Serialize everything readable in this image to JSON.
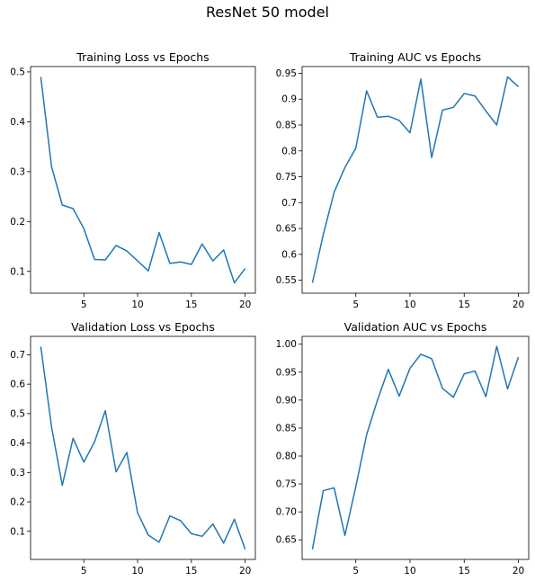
{
  "suptitle": "ResNet 50 model",
  "colors": {
    "line": "#1f77b4",
    "axes": "#000000",
    "background": "#ffffff"
  },
  "chart_data": [
    {
      "type": "line",
      "title": "Training Loss vs Epochs",
      "xlabel": "",
      "ylabel": "",
      "x": [
        1,
        2,
        3,
        4,
        5,
        6,
        7,
        8,
        9,
        10,
        11,
        12,
        13,
        14,
        15,
        16,
        17,
        18,
        19,
        20
      ],
      "values": [
        0.49,
        0.31,
        0.233,
        0.226,
        0.186,
        0.124,
        0.123,
        0.152,
        0.141,
        0.121,
        0.101,
        0.178,
        0.116,
        0.119,
        0.114,
        0.155,
        0.121,
        0.143,
        0.077,
        0.106
      ],
      "xticks": [
        5,
        10,
        15,
        20
      ],
      "yticks": [
        0.1,
        0.2,
        0.3,
        0.4,
        0.5
      ],
      "xlim": [
        0.05,
        20.95
      ],
      "ylim": [
        0.0563,
        0.5107
      ],
      "grid": false
    },
    {
      "type": "line",
      "title": "Training AUC vs Epochs",
      "xlabel": "",
      "ylabel": "",
      "x": [
        1,
        2,
        3,
        4,
        5,
        6,
        7,
        8,
        9,
        10,
        11,
        12,
        13,
        14,
        15,
        16,
        17,
        18,
        19,
        20
      ],
      "values": [
        0.545,
        0.638,
        0.72,
        0.768,
        0.805,
        0.916,
        0.865,
        0.867,
        0.859,
        0.835,
        0.939,
        0.787,
        0.879,
        0.884,
        0.911,
        0.906,
        0.877,
        0.85,
        0.943,
        0.924
      ],
      "xticks": [
        5,
        10,
        15,
        20
      ],
      "yticks": [
        0.55,
        0.6,
        0.65,
        0.7,
        0.75,
        0.8,
        0.85,
        0.9,
        0.95
      ],
      "xlim": [
        0.05,
        20.95
      ],
      "ylim": [
        0.525,
        0.963
      ],
      "grid": false
    },
    {
      "type": "line",
      "title": "Validation Loss vs Epochs",
      "xlabel": "",
      "ylabel": "",
      "x": [
        1,
        2,
        3,
        4,
        5,
        6,
        7,
        8,
        9,
        10,
        11,
        12,
        13,
        14,
        15,
        16,
        17,
        18,
        19,
        20
      ],
      "values": [
        0.728,
        0.455,
        0.256,
        0.416,
        0.335,
        0.404,
        0.51,
        0.302,
        0.368,
        0.163,
        0.087,
        0.063,
        0.152,
        0.136,
        0.092,
        0.083,
        0.125,
        0.06,
        0.141,
        0.039
      ],
      "xticks": [
        5,
        10,
        15,
        20
      ],
      "yticks": [
        0.1,
        0.2,
        0.3,
        0.4,
        0.5,
        0.6,
        0.7
      ],
      "xlim": [
        0.05,
        20.95
      ],
      "ylim": [
        0.0045,
        0.7625
      ],
      "grid": false
    },
    {
      "type": "line",
      "title": "Validation AUC vs Epochs",
      "xlabel": "",
      "ylabel": "",
      "x": [
        1,
        2,
        3,
        4,
        5,
        6,
        7,
        8,
        9,
        10,
        11,
        12,
        13,
        14,
        15,
        16,
        17,
        18,
        19,
        20
      ],
      "values": [
        0.633,
        0.738,
        0.743,
        0.658,
        0.745,
        0.838,
        0.9,
        0.955,
        0.907,
        0.957,
        0.982,
        0.974,
        0.921,
        0.905,
        0.947,
        0.952,
        0.906,
        0.996,
        0.92,
        0.977
      ],
      "xticks": [
        5,
        10,
        15,
        20
      ],
      "yticks": [
        0.65,
        0.7,
        0.75,
        0.8,
        0.85,
        0.9,
        0.95,
        1.0
      ],
      "ytick_labels": [
        "0.65",
        "0.70",
        "0.75",
        "0.80",
        "0.85",
        "0.90",
        "0.95",
        "1.00"
      ],
      "xlim": [
        0.05,
        20.95
      ],
      "ylim": [
        0.615,
        1.014
      ],
      "grid": false
    }
  ]
}
